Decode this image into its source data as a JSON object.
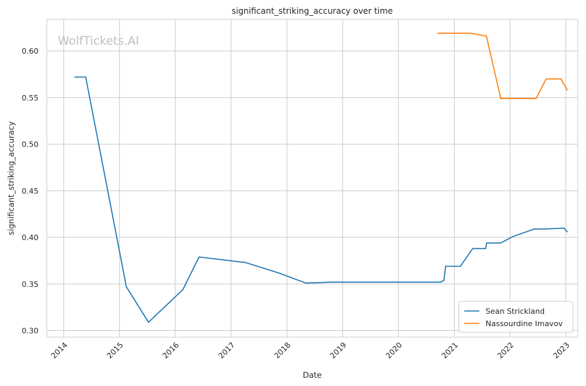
{
  "chart_data": {
    "type": "line",
    "title": "significant_striking_accuracy over time",
    "xlabel": "Date",
    "ylabel": "significant_striking_accuracy",
    "xlim": [
      "2013-09-12",
      "2023-03-20"
    ],
    "ylim": [
      0.293,
      0.634
    ],
    "x_ticks": [
      "2014",
      "2015",
      "2016",
      "2017",
      "2018",
      "2019",
      "2020",
      "2021",
      "2022",
      "2023"
    ],
    "y_ticks": [
      "0.30",
      "0.35",
      "0.40",
      "0.45",
      "0.50",
      "0.55",
      "0.60"
    ],
    "grid": true,
    "legend_position": "lower-right",
    "watermark": "WolfTickets.AI",
    "series": [
      {
        "name": "Sean Strickland",
        "color": "#1f77b4",
        "points": [
          [
            "2014-03-15",
            0.572
          ],
          [
            "2014-05-25",
            0.572
          ],
          [
            "2015-02-15",
            0.347
          ],
          [
            "2015-07-10",
            0.309
          ],
          [
            "2016-02-20",
            0.344
          ],
          [
            "2016-06-05",
            0.379
          ],
          [
            "2017-04-05",
            0.373
          ],
          [
            "2017-11-05",
            0.362
          ],
          [
            "2018-05-05",
            0.351
          ],
          [
            "2018-10-20",
            0.352
          ],
          [
            "2020-10-05",
            0.352
          ],
          [
            "2020-10-25",
            0.354
          ],
          [
            "2020-11-05",
            0.369
          ],
          [
            "2021-02-10",
            0.369
          ],
          [
            "2021-05-01",
            0.388
          ],
          [
            "2021-07-25",
            0.388
          ],
          [
            "2021-07-31",
            0.394
          ],
          [
            "2021-11-01",
            0.394
          ],
          [
            "2022-01-20",
            0.401
          ],
          [
            "2022-06-10",
            0.409
          ],
          [
            "2022-08-20",
            0.409
          ],
          [
            "2022-12-20",
            0.41
          ],
          [
            "2023-01-10",
            0.406
          ]
        ]
      },
      {
        "name": "Nassourdine Imavov",
        "color": "#ff7f0e",
        "points": [
          [
            "2020-09-15",
            0.619
          ],
          [
            "2021-04-20",
            0.619
          ],
          [
            "2021-07-30",
            0.616
          ],
          [
            "2021-11-01",
            0.549
          ],
          [
            "2022-06-20",
            0.549
          ],
          [
            "2022-08-25",
            0.57
          ],
          [
            "2022-11-30",
            0.57
          ],
          [
            "2023-01-10",
            0.558
          ]
        ]
      }
    ]
  }
}
